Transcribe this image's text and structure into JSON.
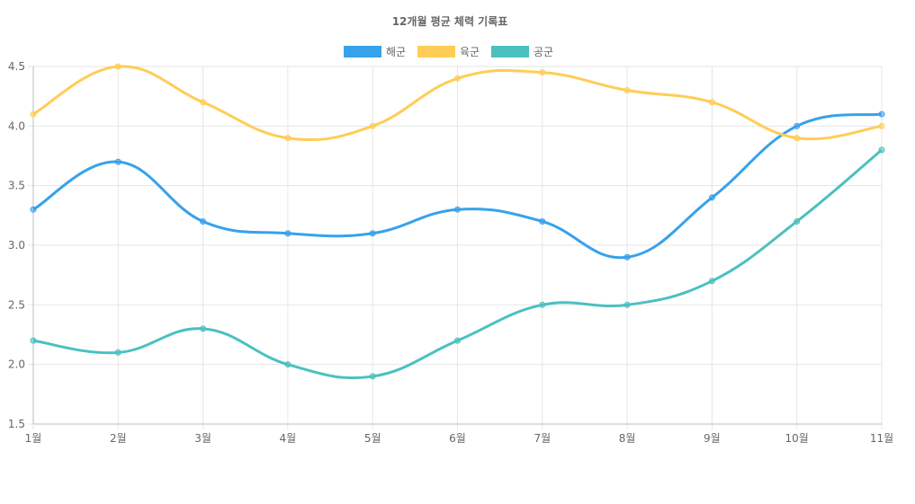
{
  "chart_data": {
    "type": "line",
    "title": "12개월 평균 체력 기록표",
    "categories": [
      "1월",
      "2월",
      "3월",
      "4월",
      "5월",
      "6월",
      "7월",
      "8월",
      "9월",
      "10월",
      "11월"
    ],
    "series": [
      {
        "name": "해군",
        "color": "#36a2eb",
        "values": [
          3.3,
          3.7,
          3.2,
          3.1,
          3.1,
          3.3,
          3.2,
          2.9,
          3.4,
          4.0,
          4.1
        ]
      },
      {
        "name": "육군",
        "color": "#ffcd56",
        "values": [
          4.1,
          4.5,
          4.2,
          3.9,
          4.0,
          4.4,
          4.45,
          4.3,
          4.2,
          3.9,
          4.0
        ]
      },
      {
        "name": "공군",
        "color": "#4bc0c0",
        "values": [
          2.2,
          2.1,
          2.3,
          2.0,
          1.9,
          2.2,
          2.5,
          2.5,
          2.7,
          3.2,
          3.8
        ]
      }
    ],
    "ylim": [
      1.5,
      4.5
    ],
    "yticks": [
      "1.5",
      "2.0",
      "2.5",
      "3.0",
      "3.5",
      "4.0",
      "4.5"
    ],
    "grid": true,
    "legend": "top-center",
    "smooth": true
  }
}
